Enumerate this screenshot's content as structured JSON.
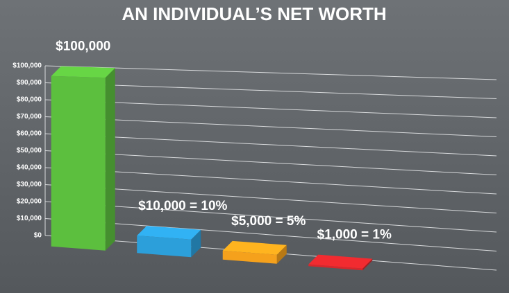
{
  "chart_data": {
    "type": "bar3d",
    "title": "AN INDIVIDUAL’S NET WORTH",
    "categories": [
      null,
      null,
      null,
      null
    ],
    "values": [
      100000,
      10000,
      5000,
      1000
    ],
    "value_labels": [
      "$100,000",
      "$10,000 = 10%",
      "$5,000 = 5%",
      "$1,000 = 1%"
    ],
    "colors": [
      "#5cbf3e",
      "#2c9fda",
      "#f5a11c",
      "#d8262b"
    ],
    "ylim": [
      0,
      100000
    ],
    "yticks": [
      {
        "value": 0,
        "label": "$0"
      },
      {
        "value": 10000,
        "label": "$10,000"
      },
      {
        "value": 20000,
        "label": "$20,000"
      },
      {
        "value": 30000,
        "label": "$30,000"
      },
      {
        "value": 40000,
        "label": "$40,000"
      },
      {
        "value": 50000,
        "label": "$50,000"
      },
      {
        "value": 60000,
        "label": "$60,000"
      },
      {
        "value": 70000,
        "label": "$70,000"
      },
      {
        "value": 80000,
        "label": "$80,000"
      },
      {
        "value": 90000,
        "label": "$90,000"
      },
      {
        "value": 100000,
        "label": "$100,000"
      }
    ],
    "grid": true
  }
}
